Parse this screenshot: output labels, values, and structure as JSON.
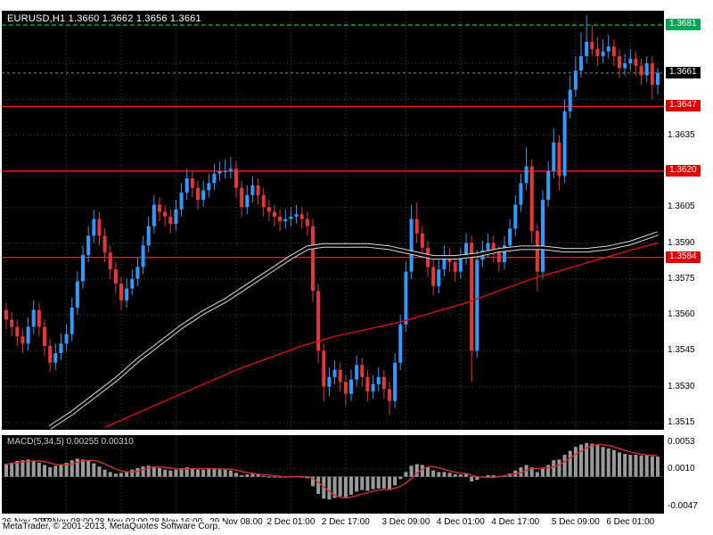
{
  "window": {
    "header_line": "EURUSD,H1 1.3660 1.3662 1.3656 1.3661",
    "symbol": "EURUSD",
    "timeframe": "H1"
  },
  "footer": {
    "credit": "MetaTrader, © 2001-2013, MetaQuotes Software Corp."
  },
  "colors": {
    "background": "#000000",
    "grid": "#1e5c1e",
    "candle_up": "#2d9bff",
    "candle_down": "#e83535",
    "level_red": "#ff1414",
    "high_line_green": "#00c853",
    "current_line_gray": "#8a8a8a",
    "ma_black": "#000000",
    "ma_black_halo": "#dcdcdc",
    "ma_red": "#cc1111",
    "macd_bar": "#9a9a9a",
    "macd_signal": "#d32f2f",
    "badge_green": "#00a651",
    "badge_black": "#000000",
    "badge_red": "#e00000"
  },
  "chart_data": {
    "type": "candlestick",
    "title": "EURUSD,H1",
    "ohlc_display": {
      "open": "1.3660",
      "high": "1.3662",
      "low": "1.3656",
      "close": "1.3661"
    },
    "ylim": [
      1.3512,
      1.3687
    ],
    "price_ticks": [
      "1.3665",
      "1.3650",
      "1.3635",
      "1.3620",
      "1.3605",
      "1.3590",
      "1.3575",
      "1.3560",
      "1.3545",
      "1.3530",
      "1.3515"
    ],
    "time_labels": [
      {
        "index": 0,
        "label": "26 Nov 2013"
      },
      {
        "index": 11,
        "label": "27 Nov 08:00"
      },
      {
        "index": 21,
        "label": "28 Nov 02:00"
      },
      {
        "index": 31,
        "label": "28 Nov 16:00"
      },
      {
        "index": 42,
        "label": "29 Nov 08:00"
      },
      {
        "index": 52,
        "label": "2 Dec 01:00"
      },
      {
        "index": 62,
        "label": "2 Dec 17:00"
      },
      {
        "index": 73,
        "label": "3 Dec 09:00"
      },
      {
        "index": 83,
        "label": "4 Dec 01:00"
      },
      {
        "index": 93,
        "label": "4 Dec 17:00"
      },
      {
        "index": 104,
        "label": "5 Dec 09:00"
      },
      {
        "index": 114,
        "label": "6 Dec 01:00"
      }
    ],
    "levels": [
      {
        "price": 1.3681,
        "label": "1.3681",
        "badge": "green",
        "line": "green-dashed"
      },
      {
        "price": 1.3661,
        "label": "1.3661",
        "badge": "black",
        "line": "gray-dashed"
      },
      {
        "price": 1.3647,
        "label": "1.3647",
        "badge": "red",
        "line": "red-solid"
      },
      {
        "price": 1.362,
        "label": "1.3620",
        "badge": "red",
        "line": "red-solid"
      },
      {
        "price": 1.3584,
        "label": "1.3584",
        "badge": "red",
        "line": "red-solid"
      }
    ],
    "candles": [
      [
        1.3562,
        1.3565,
        1.3554,
        1.3558
      ],
      [
        1.3558,
        1.3561,
        1.3551,
        1.3555
      ],
      [
        1.3555,
        1.3558,
        1.3547,
        1.3551
      ],
      [
        1.3551,
        1.3554,
        1.3544,
        1.3548
      ],
      [
        1.3548,
        1.3559,
        1.3545,
        1.3555
      ],
      [
        1.3555,
        1.3566,
        1.3552,
        1.3562
      ],
      [
        1.3562,
        1.3565,
        1.3551,
        1.3555
      ],
      [
        1.3555,
        1.3558,
        1.3543,
        1.3547
      ],
      [
        1.3547,
        1.355,
        1.3536,
        1.354
      ],
      [
        1.354,
        1.3548,
        1.3537,
        1.3544
      ],
      [
        1.3544,
        1.3552,
        1.3541,
        1.3548
      ],
      [
        1.3548,
        1.3556,
        1.3545,
        1.3552
      ],
      [
        1.3552,
        1.3567,
        1.3549,
        1.3563
      ],
      [
        1.3563,
        1.3578,
        1.356,
        1.3574
      ],
      [
        1.3574,
        1.3589,
        1.3571,
        1.3585
      ],
      [
        1.3585,
        1.3597,
        1.3582,
        1.3593
      ],
      [
        1.3593,
        1.3604,
        1.359,
        1.36
      ],
      [
        1.36,
        1.3603,
        1.3589,
        1.3593
      ],
      [
        1.3593,
        1.3596,
        1.3582,
        1.3586
      ],
      [
        1.3586,
        1.3589,
        1.3575,
        1.3579
      ],
      [
        1.3579,
        1.3582,
        1.3569,
        1.3573
      ],
      [
        1.3573,
        1.3576,
        1.3562,
        1.3566
      ],
      [
        1.3566,
        1.3575,
        1.3563,
        1.3571
      ],
      [
        1.3571,
        1.3579,
        1.3568,
        1.3575
      ],
      [
        1.3575,
        1.3584,
        1.3572,
        1.358
      ],
      [
        1.358,
        1.3593,
        1.3577,
        1.3589
      ],
      [
        1.3589,
        1.3601,
        1.3586,
        1.3597
      ],
      [
        1.3597,
        1.361,
        1.3594,
        1.3606
      ],
      [
        1.3606,
        1.3609,
        1.3599,
        1.3603
      ],
      [
        1.3603,
        1.3606,
        1.3597,
        1.3601
      ],
      [
        1.3601,
        1.3604,
        1.3594,
        1.3598
      ],
      [
        1.3598,
        1.3608,
        1.3595,
        1.3604
      ],
      [
        1.3604,
        1.3615,
        1.3601,
        1.3611
      ],
      [
        1.3611,
        1.3621,
        1.3608,
        1.3617
      ],
      [
        1.3617,
        1.362,
        1.3609,
        1.3613
      ],
      [
        1.3613,
        1.3616,
        1.3604,
        1.3608
      ],
      [
        1.3608,
        1.3616,
        1.3605,
        1.3612
      ],
      [
        1.3612,
        1.3619,
        1.3609,
        1.3615
      ],
      [
        1.3615,
        1.3623,
        1.3612,
        1.3619
      ],
      [
        1.3619,
        1.3624,
        1.3616,
        1.362
      ],
      [
        1.362,
        1.3625,
        1.3617,
        1.362
      ],
      [
        1.362,
        1.3626,
        1.3617,
        1.3621
      ],
      [
        1.3621,
        1.3624,
        1.3609,
        1.3613
      ],
      [
        1.3613,
        1.3616,
        1.3601,
        1.3605
      ],
      [
        1.3605,
        1.3614,
        1.3602,
        1.361
      ],
      [
        1.361,
        1.3618,
        1.3607,
        1.3614
      ],
      [
        1.3614,
        1.3617,
        1.3606,
        1.361
      ],
      [
        1.361,
        1.3613,
        1.3601,
        1.3605
      ],
      [
        1.3605,
        1.3608,
        1.3599,
        1.3603
      ],
      [
        1.3603,
        1.3606,
        1.3597,
        1.3601
      ],
      [
        1.3601,
        1.3604,
        1.3595,
        1.3599
      ],
      [
        1.3599,
        1.3604,
        1.3596,
        1.36
      ],
      [
        1.36,
        1.3605,
        1.3597,
        1.3601
      ],
      [
        1.3601,
        1.3606,
        1.3598,
        1.3602
      ],
      [
        1.3602,
        1.3605,
        1.3596,
        1.36
      ],
      [
        1.36,
        1.3603,
        1.3593,
        1.3597
      ],
      [
        1.3597,
        1.36,
        1.3565,
        1.357
      ],
      [
        1.357,
        1.3573,
        1.354,
        1.3545
      ],
      [
        1.3545,
        1.3548,
        1.3524,
        1.353
      ],
      [
        1.353,
        1.3538,
        1.3526,
        1.3534
      ],
      [
        1.3534,
        1.3541,
        1.3531,
        1.3537
      ],
      [
        1.3537,
        1.354,
        1.3528,
        1.3532
      ],
      [
        1.3532,
        1.3535,
        1.3522,
        1.3527
      ],
      [
        1.3527,
        1.3537,
        1.3524,
        1.3533
      ],
      [
        1.3533,
        1.3543,
        1.353,
        1.3539
      ],
      [
        1.3539,
        1.3542,
        1.353,
        1.3534
      ],
      [
        1.3534,
        1.3537,
        1.3524,
        1.3528
      ],
      [
        1.3528,
        1.3535,
        1.3525,
        1.3531
      ],
      [
        1.3531,
        1.3538,
        1.3528,
        1.3534
      ],
      [
        1.3534,
        1.3537,
        1.3525,
        1.3529
      ],
      [
        1.3529,
        1.3532,
        1.3518,
        1.3524
      ],
      [
        1.3524,
        1.3544,
        1.3521,
        1.354
      ],
      [
        1.354,
        1.356,
        1.3537,
        1.3556
      ],
      [
        1.3556,
        1.3582,
        1.3553,
        1.3578
      ],
      [
        1.3578,
        1.3606,
        1.3575,
        1.36
      ],
      [
        1.36,
        1.3607,
        1.359,
        1.3594
      ],
      [
        1.3594,
        1.3597,
        1.3584,
        1.3588
      ],
      [
        1.3588,
        1.3591,
        1.3576,
        1.358
      ],
      [
        1.358,
        1.3583,
        1.3568,
        1.3572
      ],
      [
        1.3572,
        1.3583,
        1.3569,
        1.3579
      ],
      [
        1.3579,
        1.3589,
        1.3576,
        1.3585
      ],
      [
        1.3585,
        1.3588,
        1.3578,
        1.3582
      ],
      [
        1.3582,
        1.3585,
        1.3574,
        1.3578
      ],
      [
        1.3578,
        1.3588,
        1.3575,
        1.3584
      ],
      [
        1.3584,
        1.3594,
        1.3581,
        1.359
      ],
      [
        1.359,
        1.3593,
        1.3532,
        1.3545
      ],
      [
        1.3545,
        1.3587,
        1.3542,
        1.3583
      ],
      [
        1.3583,
        1.3591,
        1.358,
        1.3587
      ],
      [
        1.3587,
        1.3594,
        1.3584,
        1.359
      ],
      [
        1.359,
        1.3593,
        1.3582,
        1.3586
      ],
      [
        1.3586,
        1.3589,
        1.3578,
        1.3582
      ],
      [
        1.3582,
        1.3593,
        1.3579,
        1.3589
      ],
      [
        1.3589,
        1.36,
        1.3586,
        1.3596
      ],
      [
        1.3596,
        1.361,
        1.3593,
        1.3606
      ],
      [
        1.3606,
        1.3619,
        1.3603,
        1.3615
      ],
      [
        1.3615,
        1.363,
        1.3612,
        1.3622
      ],
      [
        1.3622,
        1.3625,
        1.359,
        1.3595
      ],
      [
        1.3595,
        1.3598,
        1.357,
        1.3578
      ],
      [
        1.3578,
        1.3612,
        1.3575,
        1.3608
      ],
      [
        1.3608,
        1.3624,
        1.3605,
        1.362
      ],
      [
        1.362,
        1.3638,
        1.3617,
        1.3632
      ],
      [
        1.3632,
        1.3635,
        1.3612,
        1.3618
      ],
      [
        1.3618,
        1.365,
        1.3615,
        1.3645
      ],
      [
        1.3645,
        1.366,
        1.3642,
        1.3654
      ],
      [
        1.3654,
        1.3668,
        1.3651,
        1.3662
      ],
      [
        1.3662,
        1.3678,
        1.3659,
        1.3668
      ],
      [
        1.3668,
        1.3685,
        1.3665,
        1.3674
      ],
      [
        1.3674,
        1.3681,
        1.3668,
        1.3671
      ],
      [
        1.3671,
        1.3676,
        1.3664,
        1.3668
      ],
      [
        1.3668,
        1.3675,
        1.3665,
        1.367
      ],
      [
        1.367,
        1.3677,
        1.3667,
        1.3672
      ],
      [
        1.3672,
        1.3675,
        1.3664,
        1.3668
      ],
      [
        1.3668,
        1.3671,
        1.3659,
        1.3663
      ],
      [
        1.3663,
        1.3669,
        1.366,
        1.3665
      ],
      [
        1.3665,
        1.3671,
        1.3662,
        1.3667
      ],
      [
        1.3667,
        1.367,
        1.366,
        1.3664
      ],
      [
        1.3664,
        1.3667,
        1.3656,
        1.366
      ],
      [
        1.366,
        1.3668,
        1.3657,
        1.3665
      ],
      [
        1.3665,
        1.3668,
        1.365,
        1.3656
      ],
      [
        1.3656,
        1.3663,
        1.3652,
        1.3661
      ]
    ],
    "overlays": [
      {
        "name": "ma-black",
        "style": "black-thick",
        "points": [
          [
            8,
            1.3513
          ],
          [
            12,
            1.3519
          ],
          [
            16,
            1.3526
          ],
          [
            20,
            1.3533
          ],
          [
            24,
            1.3541
          ],
          [
            28,
            1.3548
          ],
          [
            32,
            1.3555
          ],
          [
            36,
            1.3561
          ],
          [
            40,
            1.3566
          ],
          [
            44,
            1.3572
          ],
          [
            48,
            1.3578
          ],
          [
            52,
            1.3584
          ],
          [
            55,
            1.3588
          ],
          [
            58,
            1.3589
          ],
          [
            62,
            1.3589
          ],
          [
            66,
            1.3589
          ],
          [
            70,
            1.3588
          ],
          [
            74,
            1.3586
          ],
          [
            78,
            1.3584
          ],
          [
            82,
            1.3584
          ],
          [
            86,
            1.3585
          ],
          [
            90,
            1.3587
          ],
          [
            94,
            1.3588
          ],
          [
            98,
            1.3588
          ],
          [
            102,
            1.3587
          ],
          [
            106,
            1.3587
          ],
          [
            110,
            1.3588
          ],
          [
            114,
            1.359
          ],
          [
            119,
            1.3594
          ]
        ]
      },
      {
        "name": "ma-red",
        "style": "red-thin",
        "points": [
          [
            18,
            1.3513
          ],
          [
            24,
            1.3519
          ],
          [
            30,
            1.3525
          ],
          [
            36,
            1.3531
          ],
          [
            42,
            1.3537
          ],
          [
            48,
            1.3542
          ],
          [
            54,
            1.3547
          ],
          [
            60,
            1.3551
          ],
          [
            66,
            1.3554
          ],
          [
            72,
            1.3557
          ],
          [
            78,
            1.3561
          ],
          [
            84,
            1.3565
          ],
          [
            90,
            1.357
          ],
          [
            96,
            1.3575
          ],
          [
            102,
            1.3579
          ],
          [
            108,
            1.3583
          ],
          [
            114,
            1.3587
          ],
          [
            119,
            1.359
          ]
        ]
      }
    ],
    "indicator": {
      "name": "MACD(5,34,5)",
      "label": "MACD(5,34,5) 0.00255 0.00310",
      "value_main": "0.00255",
      "value_signal": "0.00310",
      "ylim": [
        -0.0047,
        0.0053
      ],
      "axis_labels": [
        {
          "label": "0.0053",
          "value": 0.0053
        },
        {
          "label": "0.0010",
          "value": 0.001
        },
        {
          "label": "-0.0047",
          "value": -0.0047
        }
      ],
      "grid_level": 0.001,
      "signal_period": 5,
      "histogram": [
        0.0016,
        0.0018,
        0.002,
        0.0021,
        0.0022,
        0.002,
        0.0018,
        0.0015,
        0.0012,
        0.0014,
        0.0016,
        0.0018,
        0.0021,
        0.0023,
        0.0022,
        0.002,
        0.0017,
        0.0013,
        0.0009,
        0.0006,
        0.0004,
        0.0005,
        0.0007,
        0.0009,
        0.0011,
        0.0013,
        0.0014,
        0.0013,
        0.0011,
        0.0009,
        0.0008,
        0.0009,
        0.0011,
        0.0012,
        0.0011,
        0.0009,
        0.0009,
        0.001,
        0.0011,
        0.001,
        0.0009,
        0.0008,
        0.0005,
        0.0002,
        0.0003,
        0.0004,
        0.0003,
        0.0001,
        0.0,
        -0.0001,
        -0.0001,
        0.0,
        0.0001,
        0.0001,
        0.0,
        -0.0002,
        -0.0012,
        -0.0022,
        -0.0028,
        -0.0029,
        -0.0027,
        -0.0025,
        -0.0026,
        -0.0023,
        -0.0019,
        -0.0017,
        -0.0018,
        -0.0016,
        -0.0015,
        -0.0015,
        -0.0017,
        -0.0011,
        -0.0003,
        0.0006,
        0.0014,
        0.0016,
        0.0015,
        0.0012,
        0.0008,
        0.0006,
        0.0006,
        0.0005,
        0.0003,
        0.0003,
        0.0004,
        -0.0006,
        -0.0004,
        0.0,
        0.0002,
        0.0002,
        0.0001,
        0.0002,
        0.0004,
        0.0008,
        0.0012,
        0.0015,
        0.0012,
        0.0006,
        0.001,
        0.0015,
        0.0021,
        0.0022,
        0.0028,
        0.0033,
        0.0038,
        0.0041,
        0.0043,
        0.0042,
        0.004,
        0.0038,
        0.0036,
        0.0034,
        0.0031,
        0.0029,
        0.0028,
        0.0028,
        0.0027,
        0.0027,
        0.0026,
        0.00255
      ]
    }
  }
}
